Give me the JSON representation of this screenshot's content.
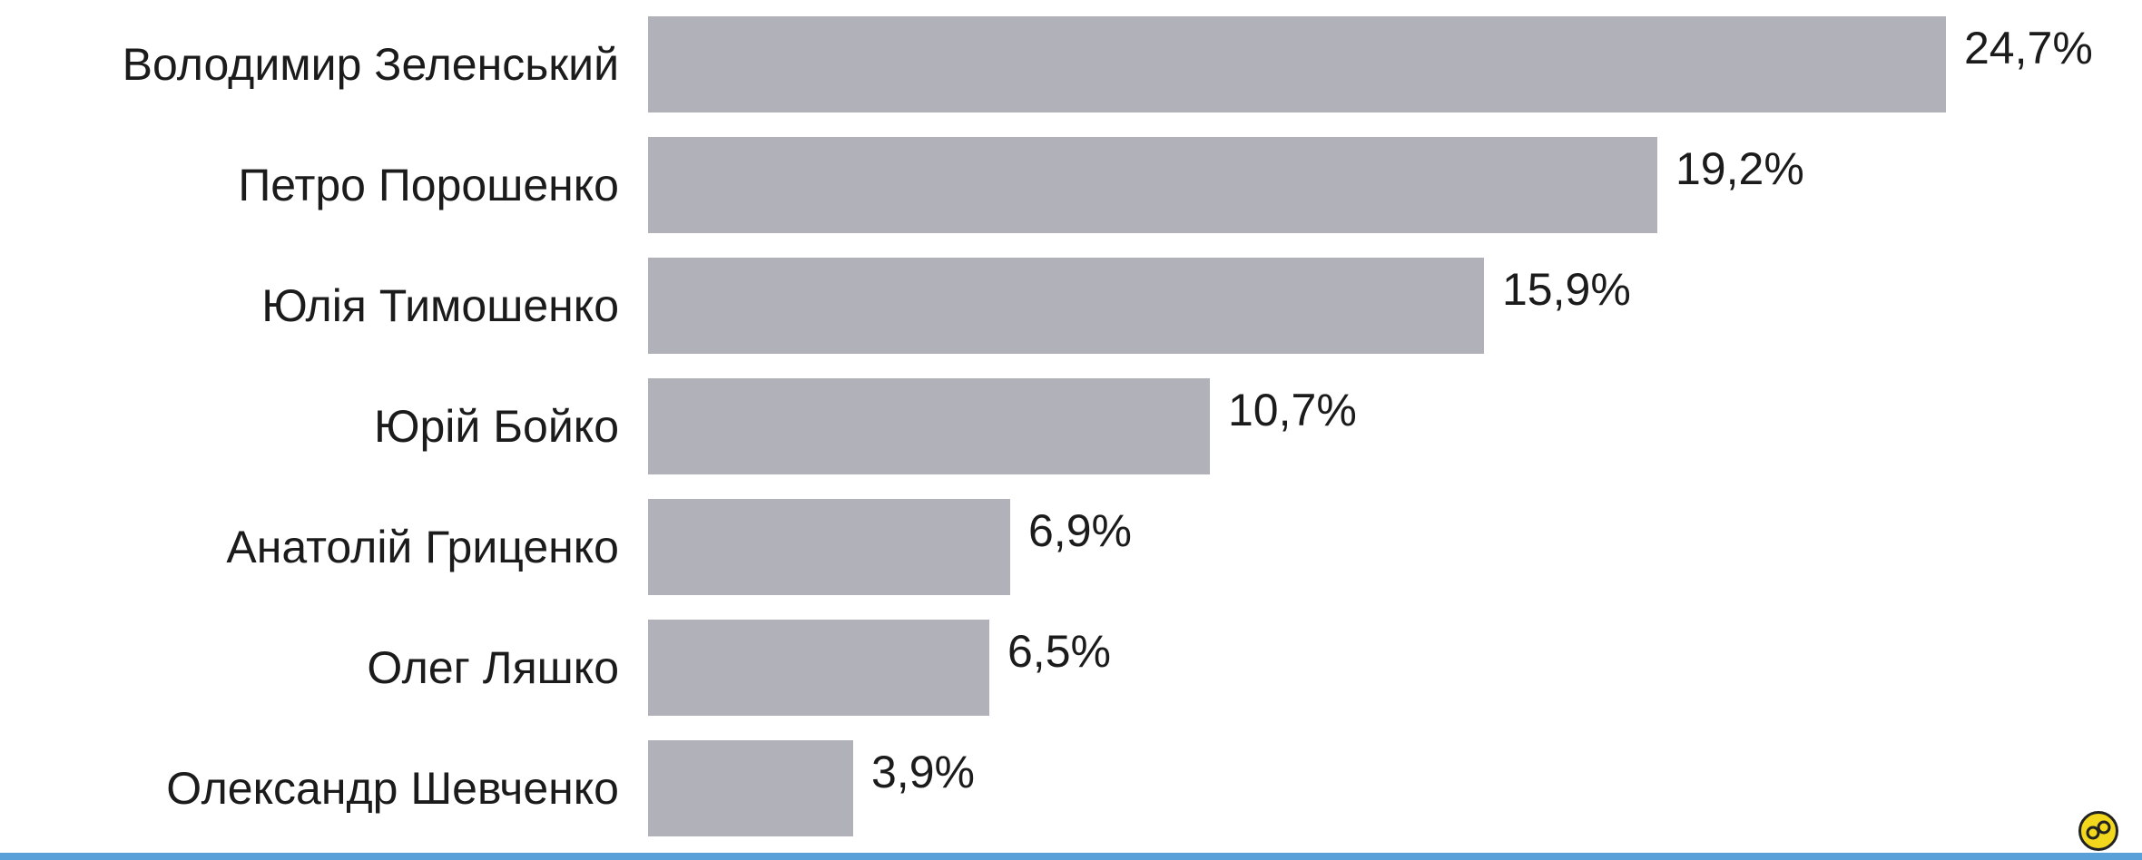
{
  "chart_data": {
    "type": "bar",
    "orientation": "horizontal",
    "categories": [
      "Володимир Зеленський",
      "Петро Порошенко",
      "Юлія Тимошенко",
      "Юрій Бойко",
      "Анатолій Гриценко",
      "Олег Ляшко",
      "Олександр Шевченко"
    ],
    "values": [
      24.7,
      19.2,
      15.9,
      10.7,
      6.9,
      6.5,
      3.9
    ],
    "value_labels": [
      "24,7%",
      "19,2%",
      "15,9%",
      "10,7%",
      "6,9%",
      "6,5%",
      "3,9%"
    ],
    "xlim": [
      0,
      24.7
    ],
    "grid": false,
    "legend": "none",
    "colors": {
      "bar": "#b1b2b9",
      "text": "#1b1b1b",
      "bottom_rule": "#5aa0d8",
      "logo": "#f2d71c"
    }
  },
  "icons": {
    "corner_logo": "circular-logo-icon"
  }
}
